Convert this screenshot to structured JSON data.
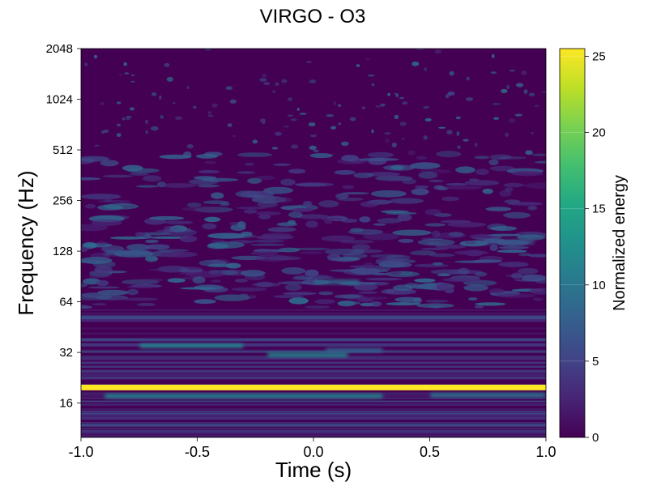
{
  "chart_data": {
    "type": "heatmap",
    "title": "VIRGO - O3",
    "xlabel": "Time (s)",
    "ylabel": "Frequency (Hz)",
    "colorbar_label": "Normalized energy",
    "colormap": "viridis",
    "x_range": [
      -1.0,
      1.0
    ],
    "y_range": [
      10,
      2048
    ],
    "y_scale": "log2",
    "color_range": [
      0,
      25.5
    ],
    "x_ticks": [
      -1.0,
      -0.5,
      0.0,
      0.5,
      1.0
    ],
    "x_tick_labels": [
      "-1.0",
      "-0.5",
      "0.0",
      "0.5",
      "1.0"
    ],
    "y_ticks": [
      16,
      32,
      64,
      128,
      256,
      512,
      1024,
      2048
    ],
    "y_tick_labels": [
      "16",
      "32",
      "64",
      "128",
      "256",
      "512",
      "1024",
      "2048"
    ],
    "colorbar_ticks": [
      0,
      5,
      10,
      15,
      20,
      25
    ],
    "colorbar_tick_labels": [
      "0",
      "5",
      "10",
      "15",
      "20",
      "25"
    ],
    "features": [
      {
        "t_start": -1.0,
        "t_end": 1.0,
        "freq_hz": 19.8,
        "energy": 25.5
      },
      {
        "t_start": -0.9,
        "t_end": 0.3,
        "freq_hz": 17.6,
        "energy": 12
      },
      {
        "t_start": 0.5,
        "t_end": 1.0,
        "freq_hz": 17.8,
        "energy": 10
      },
      {
        "t_start": -0.75,
        "t_end": -0.3,
        "freq_hz": 35,
        "energy": 12
      },
      {
        "t_start": -0.2,
        "t_end": 0.15,
        "freq_hz": 31,
        "energy": 12
      },
      {
        "t_start": 0.05,
        "t_end": 0.3,
        "freq_hz": 33,
        "energy": 8
      },
      {
        "t_start": 0.0,
        "t_end": 0.2,
        "freq_hz": 84,
        "energy": 9
      },
      {
        "t_start": -0.9,
        "t_end": -0.7,
        "freq_hz": 125,
        "energy": 7
      },
      {
        "t_start": 0.7,
        "t_end": 0.95,
        "freq_hz": 145,
        "energy": 7
      }
    ]
  }
}
